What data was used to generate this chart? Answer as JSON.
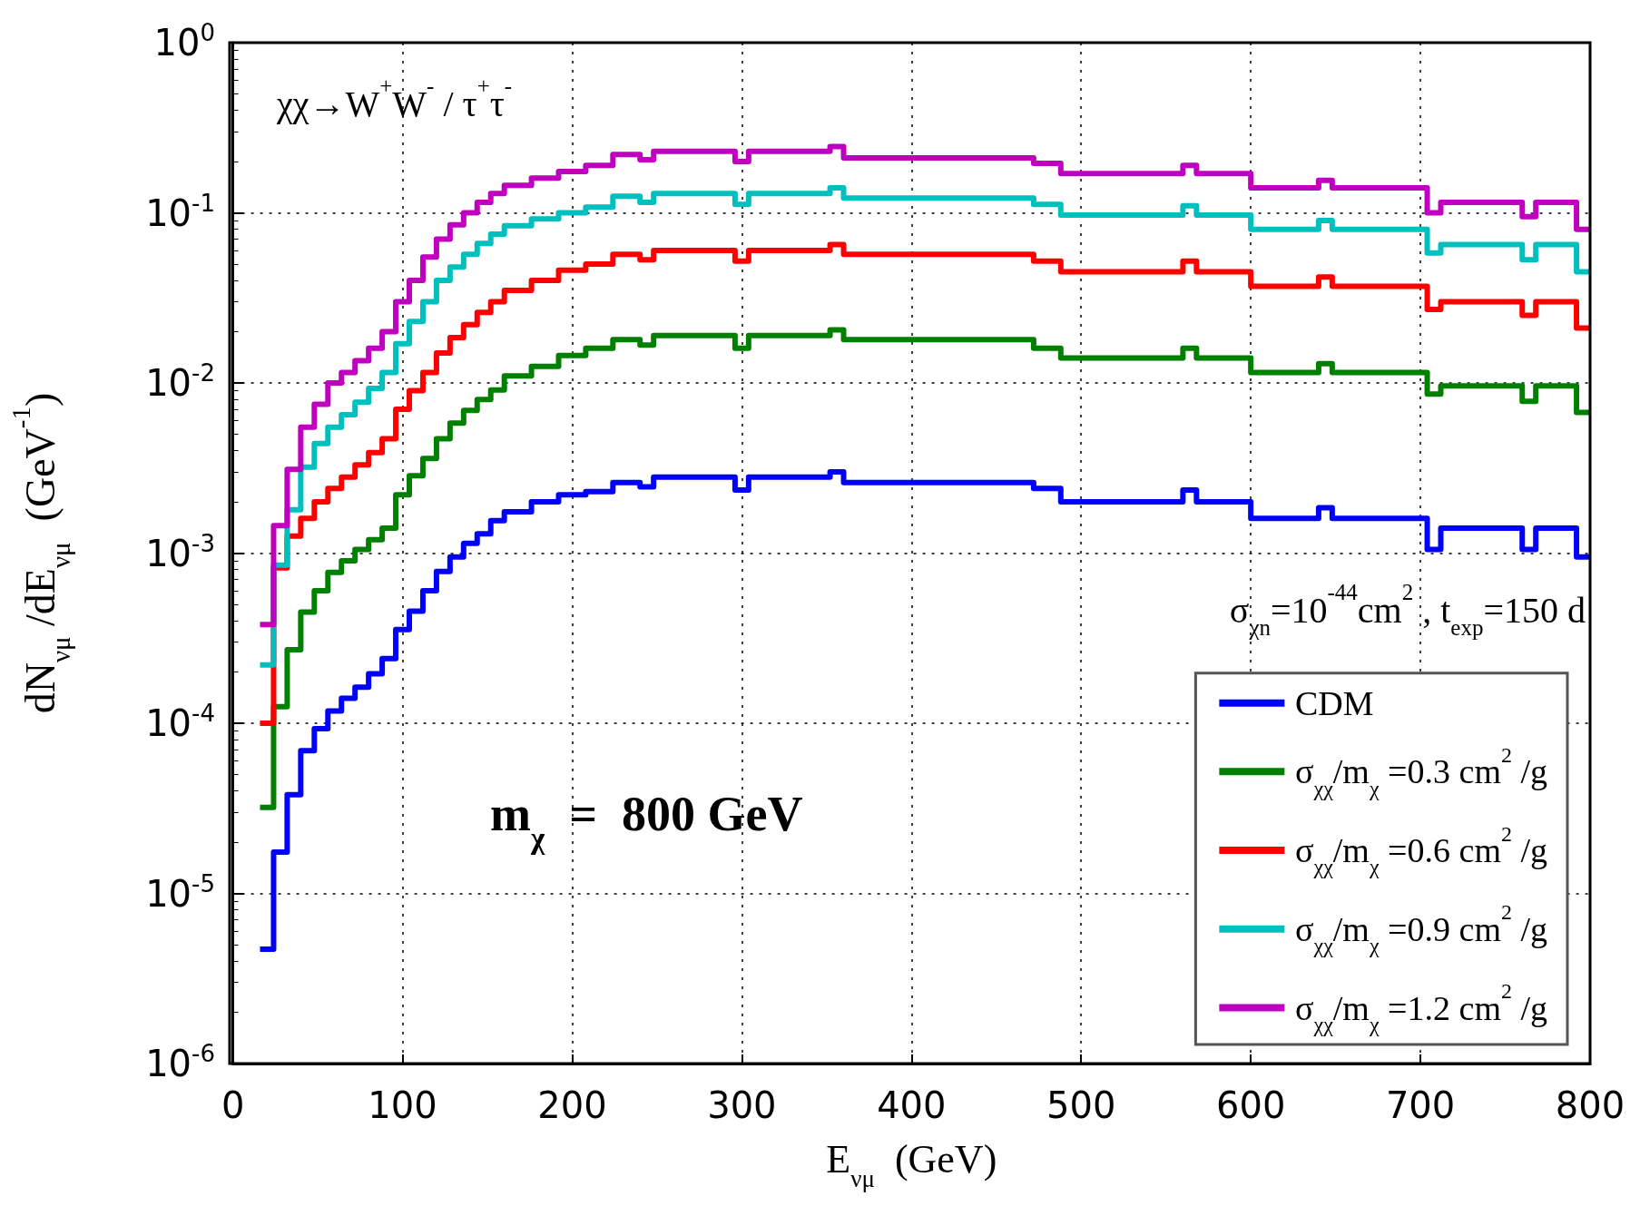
{
  "chart_data": {
    "type": "step",
    "xlabel": "E$_{νμ}$  (GeV)",
    "ylabel": "dN$_{νμ}$ /dE$_{νμ}$  (GeV$^{-1}$)",
    "annotations": [
      "χχ→W$^{+}$W$^{-}$ / τ$^{+}$τ$^{-}$",
      "σ$_{χn}$=10$^{-44}$cm$^{2}$ , t$_{exp}$=150 d",
      "m$_{χ}$  =  800 GeV"
    ],
    "x": [
      16,
      24,
      32,
      40,
      48,
      56,
      64,
      72,
      80,
      88,
      96,
      104,
      112,
      120,
      128,
      136,
      144,
      152,
      160,
      176,
      192,
      208,
      224,
      240,
      248,
      296,
      304,
      352,
      360,
      400,
      472,
      488,
      560,
      568,
      600,
      640,
      648,
      704,
      712,
      760,
      768,
      792,
      800
    ],
    "series": [
      {
        "name": "CDM",
        "color": "#0000ff",
        "values": [
          4.7e-06,
          1.75e-05,
          3.8e-05,
          6.9e-05,
          9.3e-05,
          0.000118,
          0.00014,
          0.000163,
          0.000195,
          0.00024,
          0.000355,
          0.000455,
          0.0006,
          0.00078,
          0.00095,
          0.00114,
          0.0013,
          0.00155,
          0.00175,
          0.002,
          0.0022,
          0.0023,
          0.0026,
          0.00245,
          0.0028,
          0.00235,
          0.0028,
          0.003,
          0.0026,
          0.0026,
          0.0024,
          0.002,
          0.00235,
          0.002,
          0.0016,
          0.00185,
          0.0016,
          0.00105,
          0.0014,
          0.00105,
          0.0014,
          0.00095,
          0.00095
        ]
      },
      {
        "name": "σ$_{χχ}$/m$_{χ}$ =0.3 cm$^{2}$ /g",
        "color": "#008000",
        "values": [
          3.2e-05,
          0.000125,
          0.00027,
          0.00045,
          0.0006,
          0.00077,
          0.0009,
          0.00105,
          0.0012,
          0.0014,
          0.0022,
          0.00285,
          0.0036,
          0.0047,
          0.0058,
          0.0069,
          0.008,
          0.0091,
          0.011,
          0.0125,
          0.0145,
          0.016,
          0.018,
          0.0167,
          0.019,
          0.016,
          0.019,
          0.0205,
          0.018,
          0.018,
          0.016,
          0.014,
          0.016,
          0.014,
          0.0115,
          0.013,
          0.0115,
          0.0086,
          0.0096,
          0.0078,
          0.0096,
          0.0067,
          0.0067
        ]
      },
      {
        "name": "σ$_{χχ}$/m$_{χ}$ =0.6 cm$^{2}$ /g",
        "color": "#ff0000",
        "values": [
          0.0001,
          0.00082,
          0.00126,
          0.0016,
          0.002,
          0.0024,
          0.0028,
          0.0033,
          0.0039,
          0.0047,
          0.007,
          0.009,
          0.0115,
          0.015,
          0.0185,
          0.022,
          0.026,
          0.03,
          0.035,
          0.04,
          0.046,
          0.05,
          0.057,
          0.053,
          0.06,
          0.052,
          0.06,
          0.065,
          0.057,
          0.057,
          0.052,
          0.045,
          0.052,
          0.045,
          0.037,
          0.042,
          0.037,
          0.027,
          0.03,
          0.025,
          0.03,
          0.021,
          0.021
        ]
      },
      {
        "name": "σ$_{χχ}$/m$_{χ}$ =0.9 cm$^{2}$ /g",
        "color": "#00bfbf",
        "values": [
          0.00022,
          0.00085,
          0.0018,
          0.0032,
          0.0044,
          0.0055,
          0.0065,
          0.0077,
          0.0093,
          0.0115,
          0.017,
          0.023,
          0.03,
          0.04,
          0.048,
          0.057,
          0.066,
          0.075,
          0.084,
          0.092,
          0.1,
          0.108,
          0.125,
          0.115,
          0.13,
          0.112,
          0.13,
          0.14,
          0.122,
          0.122,
          0.112,
          0.097,
          0.11,
          0.097,
          0.08,
          0.09,
          0.08,
          0.058,
          0.065,
          0.053,
          0.065,
          0.045,
          0.045
        ]
      },
      {
        "name": "σ$_{χχ}$/m$_{χ}$ =1.2 cm$^{2}$ /g",
        "color": "#bf00bf",
        "values": [
          0.00038,
          0.00145,
          0.0031,
          0.0055,
          0.0075,
          0.01,
          0.0115,
          0.0135,
          0.016,
          0.02,
          0.03,
          0.04,
          0.055,
          0.07,
          0.085,
          0.1,
          0.115,
          0.13,
          0.145,
          0.16,
          0.175,
          0.19,
          0.22,
          0.205,
          0.23,
          0.2,
          0.23,
          0.245,
          0.21,
          0.21,
          0.195,
          0.17,
          0.19,
          0.17,
          0.14,
          0.155,
          0.14,
          0.1,
          0.115,
          0.095,
          0.115,
          0.08,
          0.08
        ]
      }
    ],
    "xlim": [
      0,
      800
    ],
    "xticks": [
      0,
      100,
      200,
      300,
      400,
      500,
      600,
      700,
      800
    ],
    "ylim": [
      1e-06,
      1
    ],
    "yticks": [
      {
        "value": 1e-06,
        "label": "10$^{-6}$"
      },
      {
        "value": 1e-05,
        "label": "10$^{-5}$"
      },
      {
        "value": 0.0001,
        "label": "10$^{-4}$"
      },
      {
        "value": 0.001,
        "label": "10$^{-3}$"
      },
      {
        "value": 0.01,
        "label": "10$^{-2}$"
      },
      {
        "value": 0.1,
        "label": "10$^{-1}$"
      },
      {
        "value": 1,
        "label": "10$^{0}$"
      }
    ],
    "log": true,
    "grid": true,
    "legend": "bottom right"
  }
}
